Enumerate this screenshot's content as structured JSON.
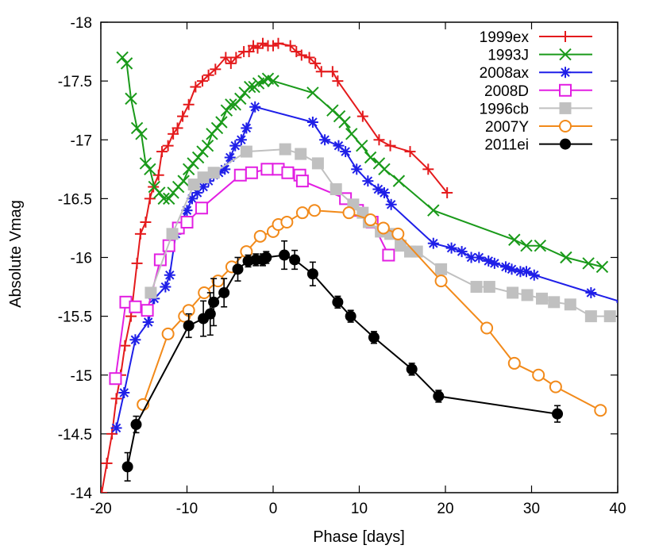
{
  "chart_data": {
    "type": "line",
    "xlabel": "Phase [days]",
    "ylabel": "Absolute Vmag",
    "xlim": [
      -20,
      40
    ],
    "ylim": [
      -14,
      -18
    ],
    "y_inverted": true,
    "x_ticks": [
      -20,
      -10,
      0,
      10,
      20,
      30,
      40
    ],
    "y_ticks": [
      -14,
      -14.5,
      -15,
      -15.5,
      -16,
      -16.5,
      -17,
      -17.5,
      -18
    ],
    "x_tick_labels": [
      "-20",
      "-10",
      "0",
      "10",
      "20",
      "30",
      "40"
    ],
    "y_tick_labels": [
      "-14",
      "-14.5",
      "-15",
      "-15.5",
      "-16",
      "-16.5",
      "-17",
      "-17.5",
      "-18"
    ],
    "grid": false,
    "legend_position": "top-right",
    "series": [
      {
        "name": "1999ex",
        "color": "#e41a1c",
        "marker": "plus",
        "x": [
          -19.9,
          -19.3,
          -18.7,
          -18.2,
          -17.7,
          -17.2,
          -16.5,
          -15.8,
          -15.4,
          -14.8,
          -14.3,
          -13.9,
          -13.3,
          -12.9,
          -12.2,
          -11.6,
          -11.1,
          -10.5,
          -9.8,
          -9.0,
          -8.2,
          -7.5,
          -6.7,
          -5.5,
          -4.9,
          -4.3,
          -3.4,
          -2.8,
          -2.3,
          -1.8,
          -1.2,
          -0.6,
          0.0,
          0.6,
          2.0,
          2.7,
          3.3,
          4.2,
          4.9,
          5.6,
          6.9,
          7.5,
          10.4,
          12.3,
          13.6,
          15.9,
          18.0,
          20.2
        ],
        "y": [
          -14.0,
          -14.25,
          -14.5,
          -14.8,
          -15.0,
          -15.25,
          -15.5,
          -15.95,
          -16.2,
          -16.3,
          -16.5,
          -16.6,
          -16.7,
          -16.9,
          -16.95,
          -17.05,
          -17.1,
          -17.2,
          -17.3,
          -17.45,
          -17.5,
          -17.55,
          -17.6,
          -17.7,
          -17.65,
          -17.7,
          -17.75,
          -17.75,
          -17.8,
          -17.78,
          -17.82,
          -17.8,
          -17.8,
          -17.82,
          -17.8,
          -17.75,
          -17.72,
          -17.7,
          -17.65,
          -17.58,
          -17.58,
          -17.5,
          -17.2,
          -17.0,
          -16.95,
          -16.9,
          -16.75,
          -16.55
        ]
      },
      {
        "name": "1993J",
        "color": "#1a9a1a",
        "marker": "x",
        "x": [
          -17.5,
          -17.0,
          -16.5,
          -15.8,
          -15.3,
          -14.8,
          -14.3,
          -13.8,
          -13.2,
          -12.7,
          -12.1,
          -11.6,
          -11.0,
          -10.4,
          -9.8,
          -9.3,
          -8.7,
          -8.2,
          -7.6,
          -7.1,
          -6.5,
          -6.0,
          -5.4,
          -4.9,
          -4.4,
          -3.8,
          -3.3,
          -2.7,
          -2.2,
          -1.7,
          -1.1,
          -0.6,
          0.0,
          4.6,
          6.9,
          7.7,
          8.3,
          9.1,
          10.3,
          11.3,
          12.3,
          12.9,
          14.6,
          18.6,
          28.0,
          29.4,
          31.0,
          34.0,
          36.6,
          38.2
        ],
        "y": [
          -17.7,
          -17.65,
          -17.35,
          -17.1,
          -17.05,
          -16.8,
          -16.75,
          -16.6,
          -16.55,
          -16.5,
          -16.5,
          -16.55,
          -16.6,
          -16.65,
          -16.75,
          -16.8,
          -16.85,
          -16.9,
          -16.95,
          -17.05,
          -17.1,
          -17.15,
          -17.25,
          -17.3,
          -17.3,
          -17.35,
          -17.4,
          -17.45,
          -17.45,
          -17.48,
          -17.5,
          -17.52,
          -17.5,
          -17.4,
          -17.25,
          -17.2,
          -17.15,
          -17.05,
          -16.95,
          -16.85,
          -16.8,
          -16.75,
          -16.65,
          -16.4,
          -16.15,
          -16.1,
          -16.1,
          -16.0,
          -15.95,
          -15.92
        ]
      },
      {
        "name": "2008ax",
        "color": "#1f1fe8",
        "marker": "asterisk",
        "x": [
          -18.2,
          -17.3,
          -16.0,
          -14.5,
          -13.8,
          -12.5,
          -12.0,
          -11.3,
          -10.0,
          -9.4,
          -8.8,
          -8.1,
          -7.5,
          -6.9,
          -6.3,
          -5.6,
          -5.0,
          -4.4,
          -3.7,
          -3.1,
          -2.1,
          4.6,
          6.0,
          7.6,
          8.4,
          9.7,
          11.0,
          12.2,
          12.9,
          13.7,
          18.6,
          20.7,
          21.9,
          23.0,
          23.9,
          25.0,
          25.7,
          27.0,
          27.7,
          28.7,
          29.4,
          30.3,
          36.9,
          40.5
        ],
        "y": [
          -14.55,
          -14.85,
          -15.3,
          -15.45,
          -15.65,
          -15.75,
          -15.85,
          -16.2,
          -16.4,
          -16.5,
          -16.55,
          -16.6,
          -16.65,
          -16.7,
          -16.72,
          -16.75,
          -16.85,
          -16.95,
          -17.0,
          -17.1,
          -17.28,
          -17.15,
          -17.0,
          -16.95,
          -16.9,
          -16.75,
          -16.65,
          -16.58,
          -16.55,
          -16.45,
          -16.12,
          -16.08,
          -16.05,
          -16.0,
          -16.0,
          -15.97,
          -15.95,
          -15.92,
          -15.9,
          -15.88,
          -15.88,
          -15.85,
          -15.7,
          -15.62
        ]
      },
      {
        "name": "2008D",
        "color": "#e21fe2",
        "marker": "open-square",
        "x": [
          -18.3,
          -17.1,
          -16.0,
          -14.6,
          -13.1,
          -12.1,
          -11.0,
          -10.0,
          -8.3,
          -3.8,
          -2.5,
          -0.7,
          0.6,
          1.7,
          3.1,
          3.4,
          8.4,
          9.8,
          11.5,
          13.4
        ],
        "y": [
          -14.97,
          -15.62,
          -15.58,
          -15.55,
          -15.98,
          -16.1,
          -16.25,
          -16.3,
          -16.42,
          -16.7,
          -16.72,
          -16.75,
          -16.75,
          -16.72,
          -16.7,
          -16.65,
          -16.5,
          -16.4,
          -16.3,
          -16.02
        ]
      },
      {
        "name": "1996cb",
        "color": "#c0c0c0",
        "marker": "filled-square",
        "x": [
          -14.2,
          -11.7,
          -9.2,
          -8.1,
          -6.9,
          -3.1,
          1.4,
          3.2,
          5.2,
          7.3,
          9.3,
          10.4,
          11.1,
          12.5,
          13.6,
          14.8,
          15.9,
          16.7,
          19.5,
          23.6,
          25.1,
          27.8,
          29.5,
          31.2,
          32.6,
          34.5,
          36.9,
          39.1
        ],
        "y": [
          -15.7,
          -16.2,
          -16.62,
          -16.68,
          -16.72,
          -16.9,
          -16.92,
          -16.88,
          -16.8,
          -16.58,
          -16.45,
          -16.38,
          -16.3,
          -16.22,
          -16.2,
          -16.1,
          -16.05,
          -16.05,
          -15.9,
          -15.75,
          -15.75,
          -15.7,
          -15.68,
          -15.65,
          -15.62,
          -15.6,
          -15.5,
          -15.5
        ]
      },
      {
        "name": "2007Y",
        "color": "#f28a1a",
        "marker": "open-circle",
        "x": [
          -15.1,
          -12.2,
          -10.3,
          -9.8,
          -8.0,
          -6.4,
          -4.8,
          -3.1,
          -1.5,
          0.0,
          0.6,
          1.6,
          3.4,
          4.8,
          8.8,
          11.3,
          12.8,
          14.5,
          19.5,
          24.8,
          28.0,
          30.8,
          32.8,
          38.0
        ],
        "y": [
          -14.75,
          -15.35,
          -15.5,
          -15.55,
          -15.7,
          -15.8,
          -15.92,
          -16.05,
          -16.18,
          -16.22,
          -16.28,
          -16.3,
          -16.38,
          -16.4,
          -16.38,
          -16.32,
          -16.25,
          -16.2,
          -15.8,
          -15.4,
          -15.1,
          -15.0,
          -14.9,
          -14.7
        ]
      },
      {
        "name": "2011ei",
        "color": "#000000",
        "marker": "filled-circle",
        "x": [
          -16.9,
          -15.9,
          -9.8,
          -8.1,
          -7.3,
          -6.9,
          -5.7,
          -4.1,
          -2.9,
          -2.0,
          -1.2,
          -0.8,
          1.3,
          2.5,
          4.6,
          7.5,
          9.0,
          11.7,
          16.1,
          19.2,
          33.0
        ],
        "y": [
          -14.22,
          -14.58,
          -15.42,
          -15.48,
          -15.52,
          -15.62,
          -15.7,
          -15.9,
          -15.97,
          -15.98,
          -15.98,
          -16.0,
          -16.02,
          -15.98,
          -15.86,
          -15.62,
          -15.5,
          -15.32,
          -15.05,
          -14.82,
          -14.67
        ],
        "y_err": [
          0.12,
          0.07,
          0.1,
          0.15,
          0.18,
          0.2,
          0.12,
          0.1,
          0.05,
          0.05,
          0.05,
          0.05,
          0.12,
          0.08,
          0.1,
          0.05,
          0.05,
          0.05,
          0.05,
          0.05,
          0.07
        ]
      }
    ]
  }
}
